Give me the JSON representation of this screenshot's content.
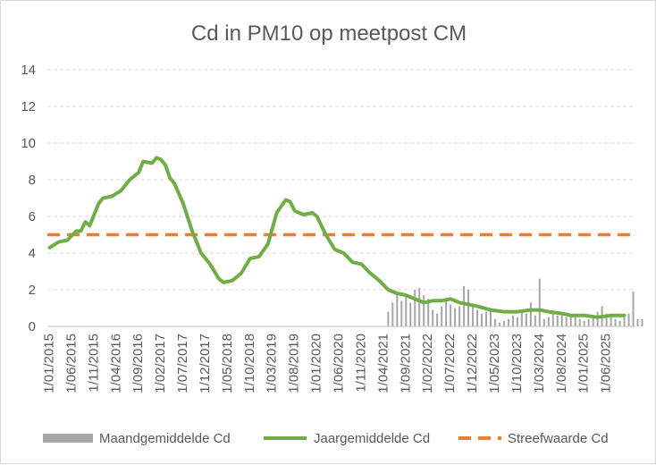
{
  "chart_data": {
    "type": "line",
    "title": "Cd in PM10 op meetpost CM",
    "xlabel": "",
    "ylabel": "",
    "ylim": [
      0,
      14
    ],
    "yticks": [
      0,
      2,
      4,
      6,
      8,
      10,
      12,
      14
    ],
    "x_tick_labels": [
      "1/01/2015",
      "1/06/2015",
      "1/11/2015",
      "1/04/2016",
      "1/09/2016",
      "1/02/2017",
      "1/07/2017",
      "1/12/2017",
      "1/05/2018",
      "1/10/2018",
      "1/03/2019",
      "1/08/2019",
      "1/01/2020",
      "1/06/2020",
      "1/11/2020",
      "1/04/2021",
      "1/09/2021",
      "1/02/2022",
      "1/07/2022",
      "1/12/2022",
      "1/05/2023",
      "1/10/2023",
      "1/03/2024",
      "1/08/2024",
      "1/01/2025",
      "1/06/2025"
    ],
    "x_range": [
      "2015-01",
      "2025-12"
    ],
    "gridlines": "horizontal",
    "legend_position": "bottom",
    "colors": {
      "monthly": "#a6a6a6",
      "yearly": "#70ad47",
      "target": "#ed7d31",
      "grid": "#d9d9d9",
      "text": "#595959"
    },
    "series": [
      {
        "name": "Maandgemiddelde Cd",
        "kind": "bar",
        "start": "2021-04",
        "values": [
          0.0,
          0.8,
          1.3,
          1.8,
          1.4,
          1.7,
          1.3,
          2.0,
          2.1,
          1.7,
          1.5,
          0.9,
          0.7,
          1.1,
          1.4,
          1.2,
          1.0,
          1.1,
          2.2,
          2.0,
          1.1,
          0.9,
          0.7,
          0.8,
          1.0,
          0.4,
          0.2,
          0.3,
          0.4,
          0.6,
          0.5,
          0.8,
          0.7,
          1.3,
          0.6,
          2.6,
          0.4,
          0.5,
          0.7,
          0.6,
          0.7,
          0.5,
          0.6,
          0.5,
          0.4,
          0.3,
          0.4,
          0.6,
          0.8,
          1.1,
          0.7,
          0.6,
          0.4,
          0.3,
          0.5,
          0.7,
          1.9,
          0.4,
          0.4
        ]
      },
      {
        "name": "Jaargemiddelde Cd",
        "kind": "line",
        "points": [
          [
            "2015-01",
            4.3
          ],
          [
            "2015-03",
            4.6
          ],
          [
            "2015-05",
            4.7
          ],
          [
            "2015-07",
            5.2
          ],
          [
            "2015-08",
            5.2
          ],
          [
            "2015-09",
            5.7
          ],
          [
            "2015-10",
            5.5
          ],
          [
            "2015-12",
            6.7
          ],
          [
            "2016-01",
            7.0
          ],
          [
            "2016-03",
            7.1
          ],
          [
            "2016-05",
            7.4
          ],
          [
            "2016-07",
            8.0
          ],
          [
            "2016-09",
            8.4
          ],
          [
            "2016-10",
            9.0
          ],
          [
            "2016-12",
            8.9
          ],
          [
            "2017-01",
            9.2
          ],
          [
            "2017-02",
            9.1
          ],
          [
            "2017-03",
            8.8
          ],
          [
            "2017-04",
            8.1
          ],
          [
            "2017-05",
            7.8
          ],
          [
            "2017-07",
            6.7
          ],
          [
            "2017-09",
            5.2
          ],
          [
            "2017-11",
            4.0
          ],
          [
            "2018-01",
            3.4
          ],
          [
            "2018-03",
            2.6
          ],
          [
            "2018-04",
            2.4
          ],
          [
            "2018-06",
            2.5
          ],
          [
            "2018-08",
            2.9
          ],
          [
            "2018-10",
            3.7
          ],
          [
            "2018-12",
            3.8
          ],
          [
            "2019-02",
            4.5
          ],
          [
            "2019-04",
            6.2
          ],
          [
            "2019-06",
            6.9
          ],
          [
            "2019-07",
            6.8
          ],
          [
            "2019-08",
            6.3
          ],
          [
            "2019-10",
            6.1
          ],
          [
            "2019-12",
            6.2
          ],
          [
            "2020-01",
            6.0
          ],
          [
            "2020-03",
            5.0
          ],
          [
            "2020-05",
            4.2
          ],
          [
            "2020-07",
            4.0
          ],
          [
            "2020-09",
            3.5
          ],
          [
            "2020-11",
            3.4
          ],
          [
            "2021-01",
            2.9
          ],
          [
            "2021-03",
            2.5
          ],
          [
            "2021-05",
            2.0
          ],
          [
            "2021-07",
            1.8
          ],
          [
            "2021-09",
            1.7
          ],
          [
            "2021-11",
            1.5
          ],
          [
            "2022-01",
            1.3
          ],
          [
            "2022-03",
            1.4
          ],
          [
            "2022-05",
            1.4
          ],
          [
            "2022-07",
            1.5
          ],
          [
            "2022-09",
            1.3
          ],
          [
            "2022-11",
            1.2
          ],
          [
            "2023-01",
            1.1
          ],
          [
            "2023-04",
            0.9
          ],
          [
            "2023-07",
            0.8
          ],
          [
            "2023-10",
            0.8
          ],
          [
            "2024-01",
            0.9
          ],
          [
            "2024-03",
            0.9
          ],
          [
            "2024-05",
            0.8
          ],
          [
            "2024-08",
            0.7
          ],
          [
            "2024-10",
            0.6
          ],
          [
            "2025-01",
            0.6
          ],
          [
            "2025-04",
            0.5
          ],
          [
            "2025-07",
            0.6
          ],
          [
            "2025-10",
            0.6
          ]
        ]
      },
      {
        "name": "Streefwaarde Cd",
        "kind": "line-dashed",
        "value": 5
      }
    ]
  }
}
